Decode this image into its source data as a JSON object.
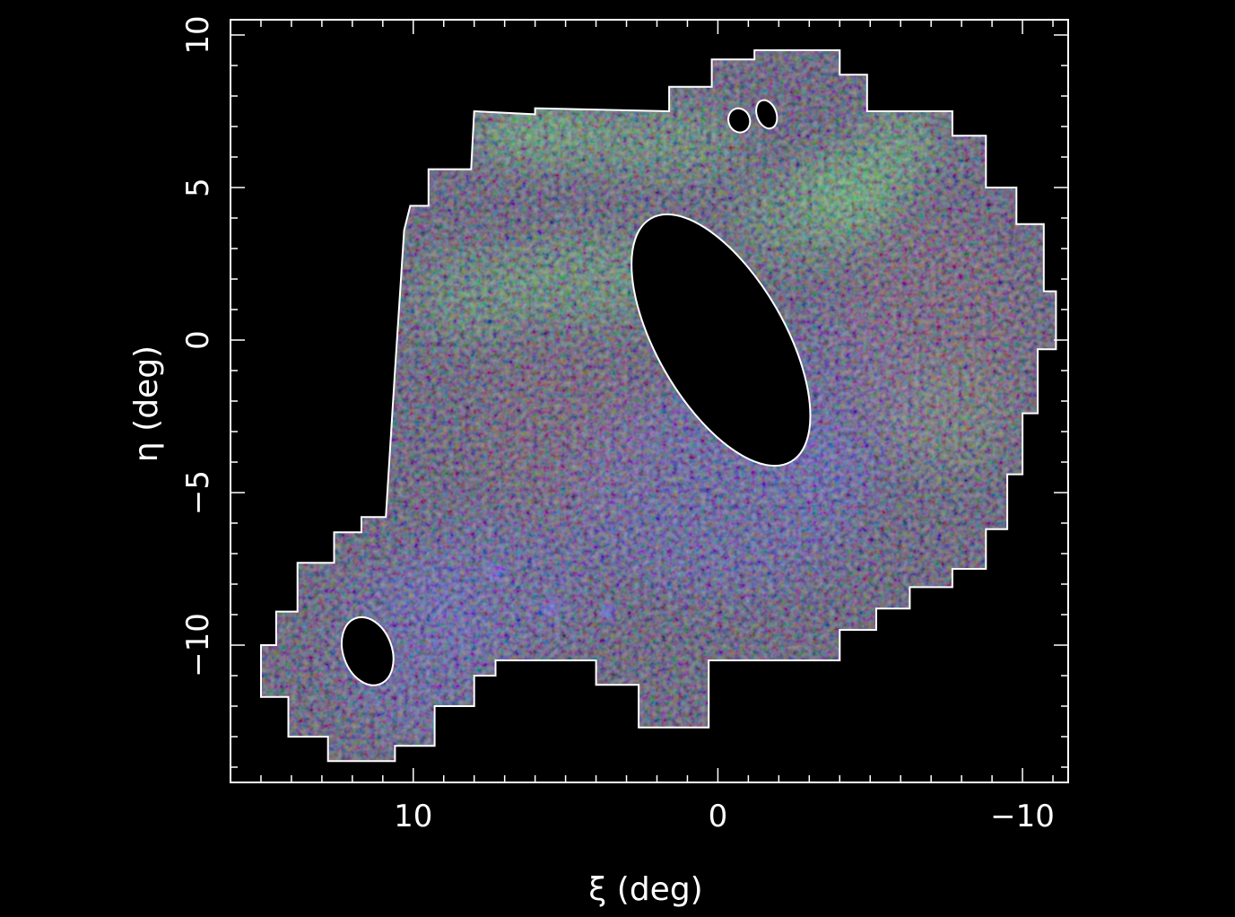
{
  "chart_data": {
    "type": "heatmap",
    "title": "",
    "xlabel": "ξ (deg)",
    "ylabel": "η (deg)",
    "xlim": [
      16,
      -11.5
    ],
    "ylim": [
      -14.5,
      10.5
    ],
    "x_ticks": [
      10,
      0,
      -10
    ],
    "x_tick_labels": [
      "10",
      "0",
      "−10"
    ],
    "y_ticks": [
      10,
      5,
      0,
      -5,
      -10
    ],
    "y_tick_labels": [
      "10",
      "5",
      "0",
      "−5",
      "−10"
    ],
    "grid": false,
    "legend": "none",
    "colors": {
      "background": "#000000",
      "frame": "#ffffff",
      "channel_red": "#b03030",
      "channel_green": "#3fcf3f",
      "channel_blue": "#3a3aff"
    },
    "survey_footprint": [
      [
        8.0,
        7.5
      ],
      [
        6.0,
        7.4
      ],
      [
        6.0,
        7.6
      ],
      [
        1.6,
        7.5
      ],
      [
        1.6,
        8.3
      ],
      [
        0.2,
        8.3
      ],
      [
        0.2,
        9.2
      ],
      [
        -1.2,
        9.2
      ],
      [
        -1.2,
        9.5
      ],
      [
        -4.0,
        9.5
      ],
      [
        -4.0,
        8.7
      ],
      [
        -4.9,
        8.7
      ],
      [
        -4.9,
        7.5
      ],
      [
        -7.7,
        7.5
      ],
      [
        -7.7,
        6.7
      ],
      [
        -8.8,
        6.7
      ],
      [
        -8.8,
        5.0
      ],
      [
        -9.8,
        5.0
      ],
      [
        -9.8,
        3.8
      ],
      [
        -10.7,
        3.8
      ],
      [
        -10.7,
        1.6
      ],
      [
        -11.1,
        1.6
      ],
      [
        -11.1,
        -0.3
      ],
      [
        -10.5,
        -0.3
      ],
      [
        -10.5,
        -2.4
      ],
      [
        -10.0,
        -2.4
      ],
      [
        -10.0,
        -4.4
      ],
      [
        -9.5,
        -4.4
      ],
      [
        -9.5,
        -6.2
      ],
      [
        -8.8,
        -6.2
      ],
      [
        -8.8,
        -7.5
      ],
      [
        -7.7,
        -7.5
      ],
      [
        -7.7,
        -8.1
      ],
      [
        -6.3,
        -8.1
      ],
      [
        -6.3,
        -8.8
      ],
      [
        -5.2,
        -8.8
      ],
      [
        -5.2,
        -9.5
      ],
      [
        -4.0,
        -9.5
      ],
      [
        -4.0,
        -10.5
      ],
      [
        0.3,
        -10.5
      ],
      [
        0.3,
        -12.7
      ],
      [
        2.6,
        -12.7
      ],
      [
        2.6,
        -11.3
      ],
      [
        4.0,
        -11.3
      ],
      [
        4.0,
        -10.5
      ],
      [
        7.3,
        -10.5
      ],
      [
        7.3,
        -11.0
      ],
      [
        8.0,
        -11.0
      ],
      [
        8.0,
        -12.0
      ],
      [
        9.3,
        -12.0
      ],
      [
        9.3,
        -13.3
      ],
      [
        10.6,
        -13.3
      ],
      [
        10.6,
        -13.8
      ],
      [
        12.8,
        -13.8
      ],
      [
        12.8,
        -13.0
      ],
      [
        14.1,
        -13.0
      ],
      [
        14.1,
        -11.7
      ],
      [
        15.0,
        -11.7
      ],
      [
        15.0,
        -10.0
      ],
      [
        14.5,
        -10.0
      ],
      [
        14.5,
        -8.9
      ],
      [
        13.8,
        -8.9
      ],
      [
        13.8,
        -7.3
      ],
      [
        12.6,
        -7.3
      ],
      [
        12.6,
        -6.3
      ],
      [
        11.7,
        -6.3
      ],
      [
        11.7,
        -5.8
      ],
      [
        10.9,
        -5.8
      ],
      [
        10.6,
        -1.0
      ],
      [
        10.3,
        3.6
      ],
      [
        10.1,
        4.4
      ],
      [
        9.5,
        4.4
      ],
      [
        9.5,
        5.6
      ],
      [
        8.1,
        5.6
      ],
      [
        8.0,
        7.5
      ]
    ],
    "masked_regions": [
      {
        "center": [
          -0.1,
          0.0
        ],
        "radius": [
          2.1,
          4.6
        ],
        "angle_deg": 30
      },
      {
        "center": [
          11.5,
          -10.2
        ],
        "radius": [
          0.8,
          1.15
        ],
        "angle_deg": 20
      },
      {
        "center": [
          -0.7,
          7.2
        ],
        "radius": [
          0.35,
          0.4
        ],
        "angle_deg": 20
      },
      {
        "center": [
          -1.6,
          7.4
        ],
        "radius": [
          0.32,
          0.48
        ],
        "angle_deg": 20
      }
    ],
    "emission_features": [
      {
        "channel": "green",
        "center": [
          6.0,
          6.8
        ],
        "size": [
          2.0,
          1.0
        ],
        "strength": 0.6
      },
      {
        "channel": "green",
        "center": [
          -4.5,
          5.0
        ],
        "size": [
          1.8,
          1.2
        ],
        "strength": 0.6
      },
      {
        "channel": "green",
        "center": [
          -6.0,
          6.5
        ],
        "size": [
          1.3,
          1.0
        ],
        "strength": 0.55
      },
      {
        "channel": "green",
        "center": [
          2.0,
          6.5
        ],
        "size": [
          3.0,
          1.2
        ],
        "strength": 0.4
      },
      {
        "channel": "green",
        "center": [
          4.0,
          2.0
        ],
        "size": [
          3.0,
          1.5
        ],
        "strength": 0.4
      },
      {
        "channel": "green",
        "center": [
          8.0,
          1.5
        ],
        "size": [
          2.0,
          1.5
        ],
        "strength": 0.35
      },
      {
        "channel": "green",
        "center": [
          -3.0,
          4.0
        ],
        "size": [
          2.5,
          1.5
        ],
        "strength": 0.35
      },
      {
        "channel": "green",
        "center": [
          -7.5,
          -2.5
        ],
        "size": [
          2.0,
          2.0
        ],
        "strength": 0.25
      },
      {
        "channel": "blue",
        "center": [
          0.0,
          -5.0
        ],
        "size": [
          5.0,
          3.5
        ],
        "strength": 0.3
      },
      {
        "channel": "blue",
        "center": [
          10.0,
          -10.0
        ],
        "size": [
          2.5,
          3.0
        ],
        "strength": 0.3
      },
      {
        "channel": "blue",
        "center": [
          7.0,
          -8.0
        ],
        "size": [
          3.0,
          2.5
        ],
        "strength": 0.25
      },
      {
        "channel": "blue",
        "center": [
          -4.0,
          -2.0
        ],
        "size": [
          3.0,
          3.0
        ],
        "strength": 0.2
      },
      {
        "channel": "blue",
        "center": [
          7.3,
          -7.6
        ],
        "size": [
          0.3,
          0.3
        ],
        "strength": 0.6
      },
      {
        "channel": "blue",
        "center": [
          5.5,
          -8.8
        ],
        "size": [
          0.3,
          0.3
        ],
        "strength": 0.55
      },
      {
        "channel": "blue",
        "center": [
          3.6,
          -8.9
        ],
        "size": [
          0.3,
          0.3
        ],
        "strength": 0.5
      },
      {
        "channel": "red",
        "center": [
          -7.0,
          0.0
        ],
        "size": [
          3.0,
          4.0
        ],
        "strength": 0.2
      },
      {
        "channel": "red",
        "center": [
          5.0,
          -3.0
        ],
        "size": [
          3.0,
          3.0
        ],
        "strength": 0.15
      }
    ]
  }
}
